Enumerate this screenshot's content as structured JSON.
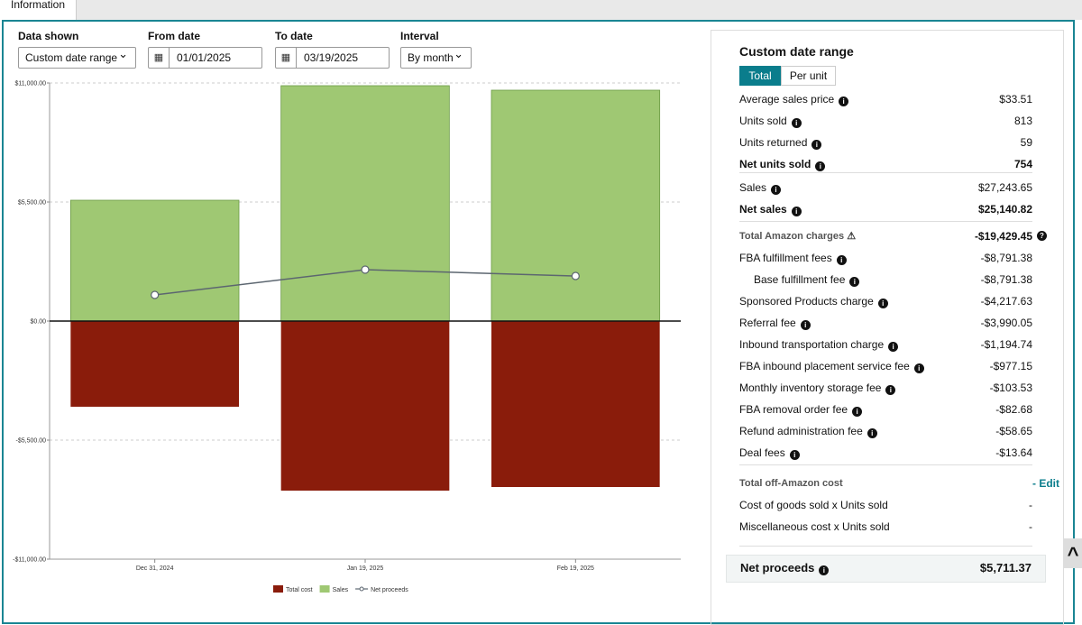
{
  "tab": "Information",
  "controls": [
    {
      "label": "Data shown",
      "value": "Custom date range"
    },
    {
      "label": "From date",
      "value": "01/01/2025"
    },
    {
      "label": "To date",
      "value": "03/19/2025"
    },
    {
      "label": "Interval",
      "value": "By month"
    }
  ],
  "chart_data": {
    "type": "bar",
    "categories": [
      "Dec 31, 2024",
      "Jan 19, 2025",
      "Feb 19, 2025"
    ],
    "series": [
      {
        "name": "Total cost",
        "color": "#8a1c0b",
        "values": [
          -3958,
          -7833,
          -7667
        ]
      },
      {
        "name": "Sales",
        "color": "#9fc873",
        "values": [
          5583,
          10875,
          10667
        ]
      },
      {
        "name": "Net proceeds",
        "type": "line",
        "color": "#5c6670",
        "values": [
          1208,
          2375,
          2083
        ]
      }
    ],
    "ylim": [
      -11000,
      11000
    ],
    "yticks": [
      {
        "value": -11000,
        "label": "-$11,000.00"
      },
      {
        "value": -5500,
        "label": "-$5,500.00"
      },
      {
        "value": 0,
        "label": "$0.00"
      },
      {
        "value": 5500,
        "label": "$5,500.00"
      },
      {
        "value": 11000,
        "label": "$11,000.00"
      }
    ],
    "grid": true
  },
  "summary": {
    "title": "Custom date range",
    "toggle": [
      "Total",
      "Per unit"
    ],
    "sections": [
      {
        "rows": [
          {
            "label": "Average sales price",
            "value": "$33.51"
          },
          {
            "label": "Units sold",
            "value": "813"
          },
          {
            "label": "Units returned",
            "value": "59"
          },
          {
            "label": "Net units sold",
            "value": "754",
            "bold": true
          }
        ]
      },
      {
        "rows": [
          {
            "label": "Sales",
            "value": "$27,243.65"
          },
          {
            "label": "Net sales",
            "value": "$25,140.82",
            "bold": true
          }
        ]
      },
      {
        "rows": [
          {
            "label": "Total Amazon charges",
            "value": "-$19,429.45",
            "muted": true
          },
          {
            "label": "FBA fulfillment fees",
            "value": "-$8,791.38"
          },
          {
            "label": "Base fulfillment fee",
            "value": "-$8,791.38",
            "indent": true
          },
          {
            "label": "Sponsored Products charge",
            "value": "-$4,217.63"
          },
          {
            "label": "Referral fee",
            "value": "-$3,990.05"
          },
          {
            "label": "Inbound transportation charge",
            "value": "-$1,194.74"
          },
          {
            "label": "FBA inbound placement service fee",
            "value": "-$977.15"
          },
          {
            "label": "Monthly inventory storage fee",
            "value": "-$103.53"
          },
          {
            "label": "FBA removal order fee",
            "value": "-$82.68"
          },
          {
            "label": "Refund administration fee",
            "value": "-$58.65"
          },
          {
            "label": "Deal fees",
            "value": "-$13.64"
          }
        ]
      },
      {
        "rows": [
          {
            "label": "Total off-Amazon cost",
            "value": "- Edit",
            "muted": true
          },
          {
            "label": "Cost of goods sold x Units sold",
            "value": "-"
          },
          {
            "label": "Miscellaneous cost x Units sold",
            "value": "-"
          }
        ]
      }
    ],
    "net_proceeds": {
      "label": "Net proceeds",
      "value": "$5,711.37"
    }
  }
}
